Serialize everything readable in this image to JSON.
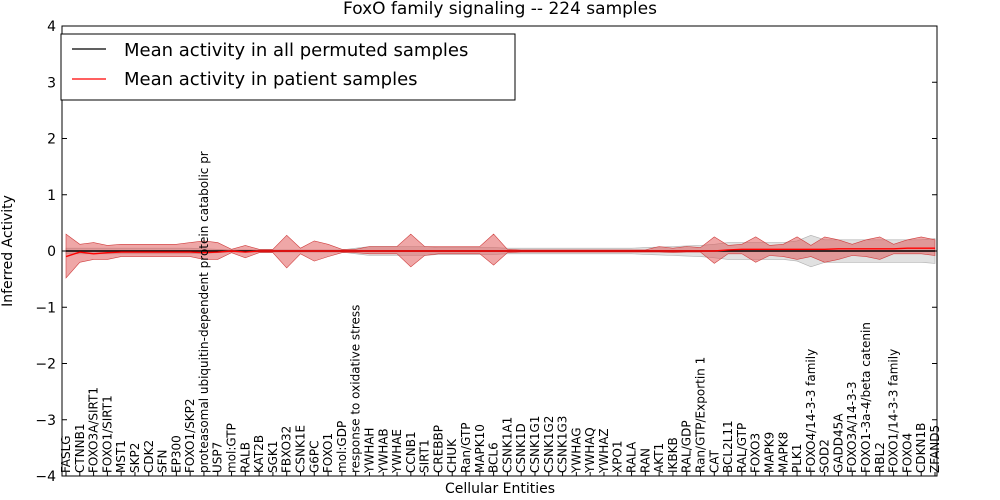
{
  "chart_data": {
    "type": "line",
    "title": "FoxO family signaling -- 224 samples",
    "xlabel": "Cellular Entities",
    "ylabel": "Inferred Activity",
    "ylim": [
      -4,
      4
    ],
    "yticks": [
      "−4",
      "−3",
      "−2",
      "−1",
      "0",
      "1",
      "2",
      "3",
      "4"
    ],
    "legend_position": "top-left",
    "categories": [
      "FASLG",
      "CTNNB1",
      "FOXO3A/SIRT1",
      "FOXO1/SIRT1",
      "MST1",
      "SKP2",
      "CDK2",
      "SFN",
      "EP300",
      "FOXO1/SKP2",
      "proteasomal ubiquitin-dependent protein catabolic pr",
      "USP7",
      "mol:GTP",
      "RALB",
      "KAT2B",
      "SGK1",
      "FBXO32",
      "CSNK1E",
      "G6PC",
      "FOXO1",
      "mol:GDP",
      "response to oxidative stress",
      "YWHAH",
      "YWHAB",
      "YWHAE",
      "CCNB1",
      "SIRT1",
      "CREBBP",
      "CHUK",
      "Ran/GTP",
      "MAPK10",
      "BCL6",
      "CSNK1A1",
      "CSNK1D",
      "CSNK1G1",
      "CSNK1G2",
      "CSNK1G3",
      "YWHAG",
      "YWHAQ",
      "YWHAZ",
      "XPO1",
      "RALA",
      "RAN",
      "AKT1",
      "IKBKB",
      "RAL/GDP",
      "Ran/GTP/Exportin 1",
      "CAT",
      "BCL2L11",
      "RAL/GTP",
      "FOXO3",
      "MAPK9",
      "MAPK8",
      "PLK1",
      "FOXO4/14-3-3 family",
      "SOD2",
      "GADD45A",
      "FOXO3A/14-3-3",
      "FOXO1-3a-4/beta catenin",
      "RBL2",
      "FOXO1/14-3-3 family",
      "FOXO4",
      "CDKN1B",
      "ZFAND5"
    ],
    "series": [
      {
        "name": "Mean activity in all permuted samples",
        "color": "#000000",
        "values": [
          0.0,
          0.0,
          0.0,
          0.0,
          0.0,
          0.0,
          0.0,
          0.0,
          0.0,
          0.0,
          0.0,
          0.0,
          0.0,
          0.0,
          0.0,
          0.0,
          0.0,
          0.0,
          0.0,
          0.0,
          0.0,
          0.0,
          0.0,
          0.0,
          0.0,
          0.0,
          0.0,
          0.0,
          0.0,
          0.0,
          0.0,
          0.0,
          0.0,
          0.0,
          0.0,
          0.0,
          0.0,
          0.0,
          0.0,
          0.0,
          0.0,
          0.0,
          0.0,
          0.0,
          0.0,
          0.0,
          0.0,
          0.0,
          0.0,
          0.0,
          0.0,
          0.0,
          0.0,
          0.0,
          0.0,
          0.0,
          0.0,
          0.0,
          0.0,
          0.0,
          0.0,
          0.0,
          0.0,
          0.0
        ],
        "lower": [
          -0.05,
          -0.05,
          -0.05,
          -0.05,
          -0.05,
          -0.05,
          -0.05,
          -0.05,
          -0.05,
          -0.05,
          -0.04,
          -0.03,
          -0.02,
          -0.02,
          -0.02,
          -0.02,
          -0.02,
          -0.02,
          -0.02,
          -0.02,
          -0.02,
          -0.05,
          -0.08,
          -0.08,
          -0.08,
          -0.08,
          -0.08,
          -0.06,
          -0.06,
          -0.06,
          -0.06,
          -0.06,
          -0.05,
          -0.05,
          -0.05,
          -0.05,
          -0.05,
          -0.05,
          -0.05,
          -0.05,
          -0.05,
          -0.05,
          -0.06,
          -0.07,
          -0.08,
          -0.09,
          -0.1,
          -0.12,
          -0.15,
          -0.15,
          -0.15,
          -0.15,
          -0.15,
          -0.18,
          -0.28,
          -0.2,
          -0.2,
          -0.2,
          -0.2,
          -0.2,
          -0.2,
          -0.2,
          -0.2,
          -0.22
        ],
        "upper": [
          0.05,
          0.05,
          0.05,
          0.05,
          0.05,
          0.05,
          0.05,
          0.05,
          0.05,
          0.05,
          0.04,
          0.03,
          0.02,
          0.02,
          0.02,
          0.02,
          0.02,
          0.02,
          0.02,
          0.02,
          0.02,
          0.05,
          0.08,
          0.08,
          0.08,
          0.08,
          0.08,
          0.06,
          0.06,
          0.06,
          0.06,
          0.06,
          0.05,
          0.05,
          0.05,
          0.05,
          0.05,
          0.05,
          0.05,
          0.05,
          0.05,
          0.05,
          0.06,
          0.07,
          0.08,
          0.09,
          0.1,
          0.12,
          0.15,
          0.15,
          0.15,
          0.15,
          0.15,
          0.18,
          0.28,
          0.2,
          0.2,
          0.2,
          0.2,
          0.2,
          0.2,
          0.2,
          0.2,
          0.22
        ]
      },
      {
        "name": "Mean activity in patient samples",
        "color": "#ff0000",
        "values": [
          -0.1,
          -0.02,
          -0.05,
          -0.03,
          -0.02,
          -0.02,
          -0.02,
          -0.02,
          -0.02,
          -0.02,
          -0.03,
          -0.02,
          0.0,
          -0.02,
          0.0,
          0.0,
          0.0,
          0.0,
          0.0,
          0.0,
          0.0,
          0.0,
          0.0,
          0.0,
          0.0,
          0.0,
          0.0,
          0.0,
          0.0,
          0.0,
          0.0,
          0.0,
          0.0,
          0.0,
          0.0,
          0.0,
          0.0,
          0.0,
          0.0,
          0.0,
          0.0,
          0.0,
          0.0,
          0.0,
          0.0,
          0.0,
          0.0,
          0.0,
          0.02,
          0.03,
          0.03,
          0.03,
          0.03,
          0.03,
          0.03,
          0.03,
          0.04,
          0.04,
          0.04,
          0.04,
          0.04,
          0.05,
          0.05,
          0.05
        ],
        "lower": [
          -0.48,
          -0.2,
          -0.15,
          -0.15,
          -0.1,
          -0.1,
          -0.1,
          -0.1,
          -0.1,
          -0.1,
          -0.15,
          -0.15,
          -0.03,
          -0.12,
          -0.03,
          -0.03,
          -0.3,
          -0.05,
          -0.18,
          -0.1,
          -0.03,
          -0.03,
          -0.05,
          -0.05,
          -0.05,
          -0.28,
          -0.08,
          -0.05,
          -0.05,
          -0.05,
          -0.05,
          -0.25,
          -0.03,
          -0.02,
          -0.02,
          -0.02,
          -0.02,
          -0.02,
          -0.02,
          -0.02,
          -0.02,
          -0.02,
          -0.02,
          -0.02,
          -0.03,
          -0.02,
          -0.02,
          -0.22,
          -0.05,
          -0.05,
          -0.2,
          -0.08,
          -0.1,
          -0.15,
          -0.1,
          -0.2,
          -0.15,
          -0.08,
          -0.1,
          -0.15,
          -0.05,
          -0.05,
          -0.05,
          -0.08
        ],
        "upper": [
          0.3,
          0.12,
          0.15,
          0.1,
          0.12,
          0.12,
          0.12,
          0.12,
          0.12,
          0.15,
          0.18,
          0.15,
          0.03,
          0.1,
          0.03,
          0.03,
          0.28,
          0.05,
          0.18,
          0.12,
          0.03,
          0.03,
          0.08,
          0.08,
          0.08,
          0.3,
          0.08,
          0.08,
          0.08,
          0.08,
          0.08,
          0.3,
          0.03,
          0.02,
          0.02,
          0.02,
          0.02,
          0.02,
          0.02,
          0.02,
          0.02,
          0.02,
          0.02,
          0.08,
          0.05,
          0.08,
          0.06,
          0.25,
          0.1,
          0.12,
          0.25,
          0.1,
          0.12,
          0.25,
          0.1,
          0.25,
          0.2,
          0.12,
          0.2,
          0.25,
          0.12,
          0.2,
          0.25,
          0.2
        ]
      }
    ]
  }
}
